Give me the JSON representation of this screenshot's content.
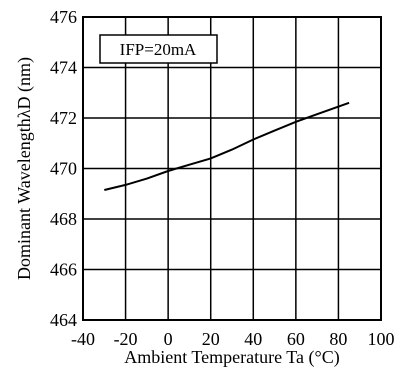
{
  "chart_data": {
    "type": "line",
    "title": "",
    "xlabel": "Ambient Temperature Ta (°C)",
    "ylabel": "Dominant WavelengthλD (nm)",
    "xlim": [
      -40,
      100
    ],
    "ylim": [
      464,
      476
    ],
    "x_ticks": [
      -40,
      -20,
      0,
      20,
      40,
      60,
      80,
      100
    ],
    "y_ticks": [
      464,
      466,
      468,
      470,
      472,
      474,
      476
    ],
    "x_tick_labels": [
      "-40",
      "-20",
      "0",
      "20",
      "40",
      "60",
      "80",
      "100"
    ],
    "y_tick_labels": [
      "464",
      "466",
      "468",
      "470",
      "472",
      "474",
      "476"
    ],
    "grid": true,
    "annotation": "IFP=20mA",
    "series": [
      {
        "x": [
          -30,
          -20,
          -10,
          0,
          10,
          20,
          30,
          40,
          50,
          60,
          70,
          85
        ],
        "y": [
          469.15,
          469.35,
          469.6,
          469.9,
          470.15,
          470.4,
          470.75,
          471.15,
          471.5,
          471.85,
          472.15,
          472.6
        ]
      }
    ],
    "colors": {
      "line": "#000000",
      "grid": "#000000",
      "background": "#ffffff"
    }
  }
}
